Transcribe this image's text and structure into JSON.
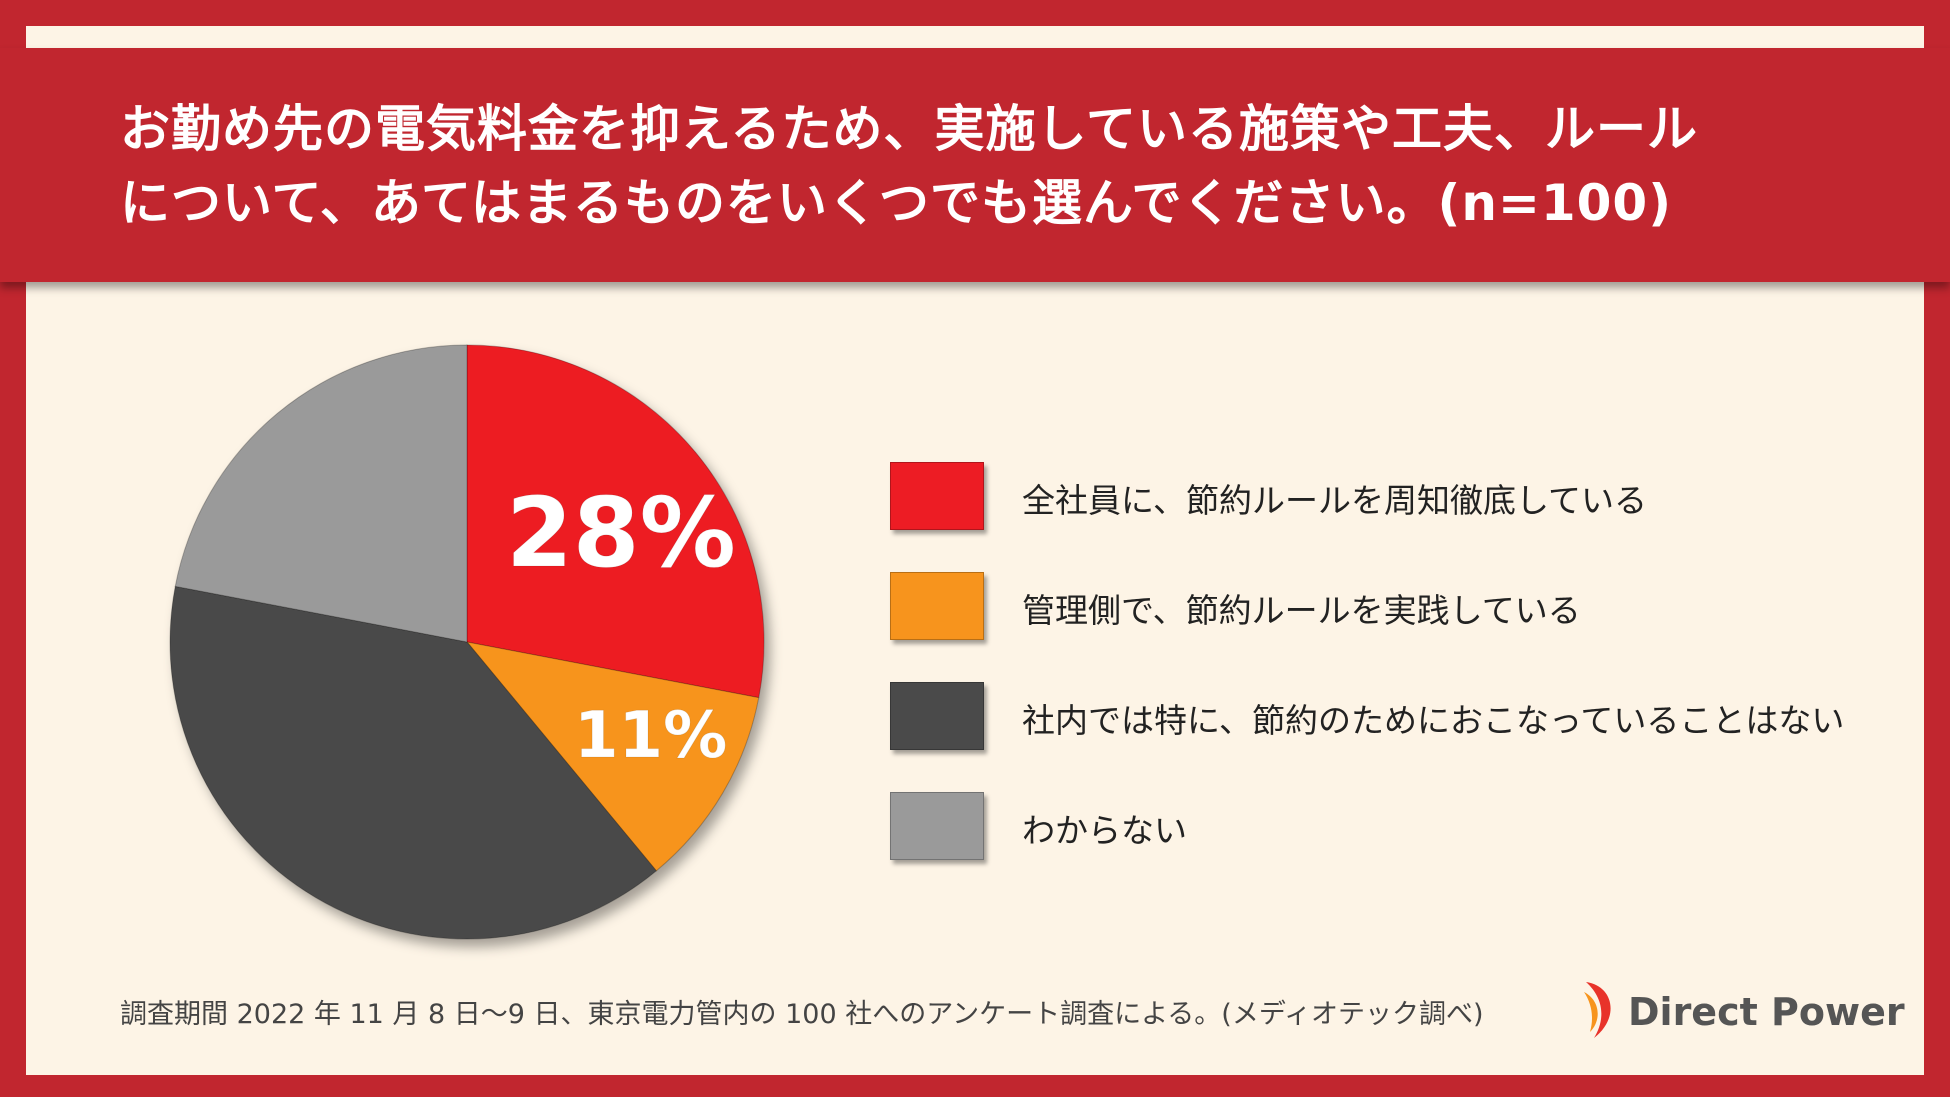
{
  "title": {
    "line1": "お勤め先の電気料金を抑えるため、実施している施策や工夫、ルール",
    "line2": "について、あてはまるものをいくつでも選んでください。(n=100)"
  },
  "chart_data": {
    "type": "pie",
    "start_angle_deg": 0,
    "direction": "clockwise",
    "slices": [
      {
        "label": "全社員に、節約ルールを周知徹底している",
        "value": 28,
        "color": "#ed1c24",
        "data_label": "28%"
      },
      {
        "label": "管理側で、節約ルールを実践している",
        "value": 11,
        "color": "#f7941d",
        "data_label": "11%"
      },
      {
        "label": "社内では特に、節約のためにおこなっていることはない",
        "value": 39,
        "color": "#4a4a4a",
        "data_label": ""
      },
      {
        "label": "わからない",
        "value": 22,
        "color": "#9a9a9a",
        "data_label": ""
      }
    ],
    "legend_position": "right"
  },
  "footnote": "調査期間 2022 年 11 月 8 日〜9 日、東京電力管内の 100 社へのアンケート調査による。(メディオテック調べ)",
  "logo": {
    "text": "Direct Power",
    "icon": "direct-power-logo-icon"
  }
}
